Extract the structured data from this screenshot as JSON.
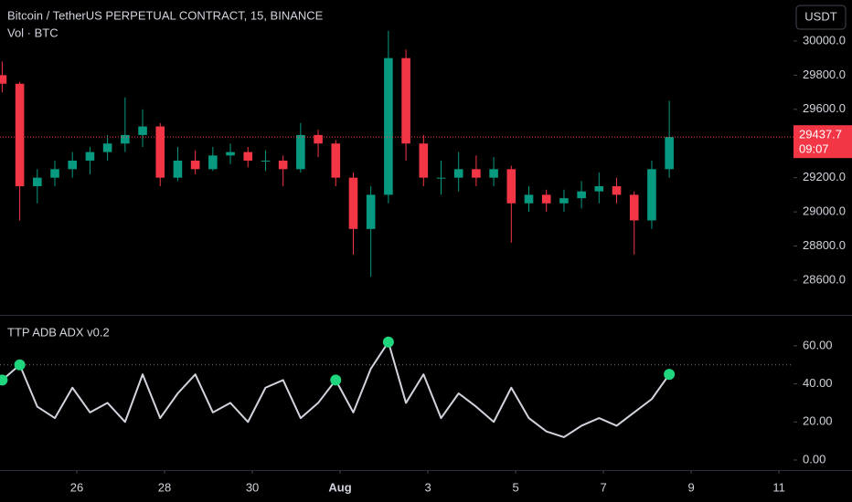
{
  "chart_data": [
    {
      "type": "candlestick",
      "title": "Bitcoin / TetherUS PERPETUAL CONTRACT, 15, BINANCE",
      "subtitle": "Vol · BTC",
      "currency_button": "USDT",
      "x": [
        24.3,
        24.7,
        25.1,
        25.5,
        25.9,
        26.3,
        26.7,
        27.1,
        27.5,
        27.9,
        28.3,
        28.7,
        29.1,
        29.5,
        29.9,
        30.3,
        30.7,
        31.1,
        31.5,
        31.9,
        32.3,
        32.7,
        33.1,
        33.5,
        33.9,
        34.3,
        34.7,
        35.1,
        35.5,
        35.9,
        36.3,
        36.7,
        37.1,
        37.5,
        37.9,
        38.3,
        38.7,
        39.1,
        39.5
      ],
      "open": [
        29800,
        29750,
        29150,
        29200,
        29250,
        29300,
        29350,
        29400,
        29450,
        29500,
        29200,
        29300,
        29250,
        29330,
        29350,
        29300,
        29300,
        29250,
        29450,
        29400,
        29200,
        28900,
        29100,
        29900,
        29400,
        29200,
        29200,
        29250,
        29200,
        29250,
        29050,
        29100,
        29050,
        29080,
        29120,
        29150,
        29100,
        28950,
        29250
      ],
      "high": [
        29880,
        29760,
        29250,
        29300,
        29350,
        29380,
        29450,
        29670,
        29600,
        29520,
        29380,
        29360,
        29380,
        29400,
        29380,
        29360,
        29330,
        29520,
        29480,
        29420,
        29230,
        29150,
        30060,
        29950,
        29450,
        29300,
        29350,
        29330,
        29320,
        29270,
        29150,
        29130,
        29130,
        29180,
        29230,
        29200,
        29120,
        29300,
        29650
      ],
      "low": [
        29700,
        28950,
        29050,
        29150,
        29200,
        29220,
        29300,
        29350,
        29380,
        29150,
        29180,
        29220,
        29240,
        29280,
        29260,
        29240,
        29150,
        29230,
        29320,
        29150,
        28750,
        28620,
        29050,
        29300,
        29150,
        29100,
        29120,
        29150,
        29150,
        28820,
        29000,
        29000,
        29000,
        29020,
        29050,
        29050,
        28750,
        28900,
        29200
      ],
      "close": [
        29750,
        29150,
        29200,
        29250,
        29300,
        29350,
        29400,
        29450,
        29500,
        29200,
        29300,
        29250,
        29330,
        29350,
        29300,
        29300,
        29250,
        29450,
        29400,
        29200,
        28900,
        29100,
        29900,
        29400,
        29200,
        29200,
        29250,
        29200,
        29250,
        29050,
        29100,
        29050,
        29080,
        29120,
        29150,
        29100,
        28950,
        29250,
        29437.7
      ],
      "up_color": "#089981",
      "down_color": "#f23645",
      "price_line": 29437.7,
      "countdown": "09:07",
      "xlim": [
        24.25,
        42.33
      ],
      "ylim": [
        28397,
        30240
      ],
      "yticks": [
        {
          "value": 28600,
          "label": "28600.0"
        },
        {
          "value": 28800,
          "label": "28800.0"
        },
        {
          "value": 29000,
          "label": "29000.0"
        },
        {
          "value": 29200,
          "label": "29200.0"
        },
        {
          "value": 29400,
          "label": "29400.0"
        },
        {
          "value": 29600,
          "label": "29600.0"
        },
        {
          "value": 29800,
          "label": "29800.0"
        },
        {
          "value": 30000,
          "label": "30000.0"
        }
      ]
    },
    {
      "type": "line",
      "title": "TTP ADB ADX v0.2",
      "x": [
        24.3,
        24.7,
        25.1,
        25.5,
        25.9,
        26.3,
        26.7,
        27.1,
        27.5,
        27.9,
        28.3,
        28.7,
        29.1,
        29.5,
        29.9,
        30.3,
        30.7,
        31.1,
        31.5,
        31.9,
        32.3,
        32.7,
        33.1,
        33.5,
        33.9,
        34.3,
        34.7,
        35.1,
        35.5,
        35.9,
        36.3,
        36.7,
        37.1,
        37.5,
        37.9,
        38.3,
        38.7,
        39.1,
        39.5
      ],
      "series": [
        {
          "color": "#d1d4dc",
          "values": [
            42,
            50,
            28,
            22,
            38,
            25,
            30,
            20,
            45,
            22,
            35,
            45,
            25,
            30,
            20,
            38,
            42,
            22,
            30,
            42,
            25,
            48,
            62,
            30,
            45,
            22,
            35,
            28,
            20,
            38,
            22,
            15,
            12,
            18,
            22,
            18,
            25,
            32,
            45
          ]
        },
        {
          "color": "#1fd67f",
          "marker": "dot",
          "values": [
            42,
            50,
            null,
            null,
            null,
            null,
            null,
            null,
            null,
            null,
            null,
            null,
            null,
            null,
            null,
            null,
            null,
            null,
            null,
            42,
            null,
            null,
            62,
            null,
            null,
            null,
            null,
            null,
            null,
            null,
            null,
            null,
            null,
            null,
            null,
            null,
            null,
            null,
            45
          ]
        }
      ],
      "reference_line": 50,
      "xlim": [
        24.25,
        42.33
      ],
      "ylim": [
        -5.3,
        75.3
      ],
      "yticks": [
        {
          "value": 0,
          "label": "0.00"
        },
        {
          "value": 20,
          "label": "20.00"
        },
        {
          "value": 40,
          "label": "40.00"
        },
        {
          "value": 60,
          "label": "60.00"
        }
      ],
      "xticks": [
        26,
        28,
        30,
        {
          "value": 32,
          "label": "Aug"
        },
        {
          "value": 34,
          "label": "3"
        },
        {
          "value": 36,
          "label": "5"
        },
        {
          "value": 38,
          "label": "7"
        },
        {
          "value": 40,
          "label": "9"
        },
        {
          "value": 42,
          "label": "11"
        }
      ]
    }
  ]
}
